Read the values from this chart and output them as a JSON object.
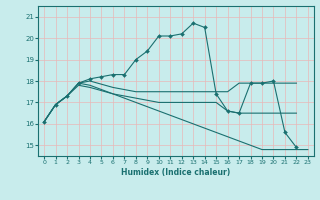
{
  "xlabel": "Humidex (Indice chaleur)",
  "background_color": "#c8ecec",
  "grid_color": "#e8b8b8",
  "line_color": "#1a7070",
  "xlim": [
    -0.5,
    23.5
  ],
  "ylim": [
    14.5,
    21.5
  ],
  "yticks": [
    15,
    16,
    17,
    18,
    19,
    20,
    21
  ],
  "xticks": [
    0,
    1,
    2,
    3,
    4,
    5,
    6,
    7,
    8,
    9,
    10,
    11,
    12,
    13,
    14,
    15,
    16,
    17,
    18,
    19,
    20,
    21,
    22,
    23
  ],
  "series": [
    {
      "x": [
        0,
        1,
        2,
        3,
        4,
        5,
        6,
        7,
        8,
        9,
        10,
        11,
        12,
        13,
        14,
        15,
        16,
        17,
        18,
        19,
        20,
        21,
        22
      ],
      "y": [
        16.1,
        16.9,
        17.3,
        17.9,
        18.1,
        18.2,
        18.3,
        18.3,
        19.0,
        19.4,
        20.1,
        20.1,
        20.2,
        20.7,
        20.5,
        17.4,
        16.6,
        16.5,
        17.9,
        17.9,
        18.0,
        15.6,
        14.9
      ],
      "has_markers": true
    },
    {
      "x": [
        0,
        1,
        2,
        3,
        4,
        5,
        6,
        7,
        8,
        9,
        10,
        11,
        12,
        13,
        14,
        15,
        16,
        17,
        18,
        19,
        20,
        21,
        22
      ],
      "y": [
        16.1,
        16.9,
        17.3,
        17.9,
        18.0,
        17.85,
        17.7,
        17.6,
        17.5,
        17.5,
        17.5,
        17.5,
        17.5,
        17.5,
        17.5,
        17.5,
        17.5,
        17.9,
        17.9,
        17.9,
        17.9,
        17.9,
        17.9
      ],
      "has_markers": false
    },
    {
      "x": [
        0,
        1,
        2,
        3,
        4,
        5,
        6,
        7,
        8,
        9,
        10,
        11,
        12,
        13,
        14,
        15,
        16,
        17,
        18,
        19,
        20,
        21,
        22,
        23
      ],
      "y": [
        16.1,
        16.9,
        17.3,
        17.9,
        17.8,
        17.6,
        17.4,
        17.2,
        17.0,
        16.8,
        16.6,
        16.4,
        16.2,
        16.0,
        15.8,
        15.6,
        15.4,
        15.2,
        15.0,
        14.8,
        14.8,
        14.8,
        14.8,
        14.8
      ],
      "has_markers": false
    },
    {
      "x": [
        0,
        1,
        2,
        3,
        4,
        5,
        6,
        7,
        8,
        9,
        10,
        11,
        12,
        13,
        14,
        15,
        16,
        17,
        18,
        19,
        20,
        21,
        22
      ],
      "y": [
        16.1,
        16.9,
        17.3,
        17.8,
        17.7,
        17.55,
        17.4,
        17.3,
        17.2,
        17.1,
        17.0,
        17.0,
        17.0,
        17.0,
        17.0,
        17.0,
        16.6,
        16.5,
        16.5,
        16.5,
        16.5,
        16.5,
        16.5
      ],
      "has_markers": false
    }
  ]
}
